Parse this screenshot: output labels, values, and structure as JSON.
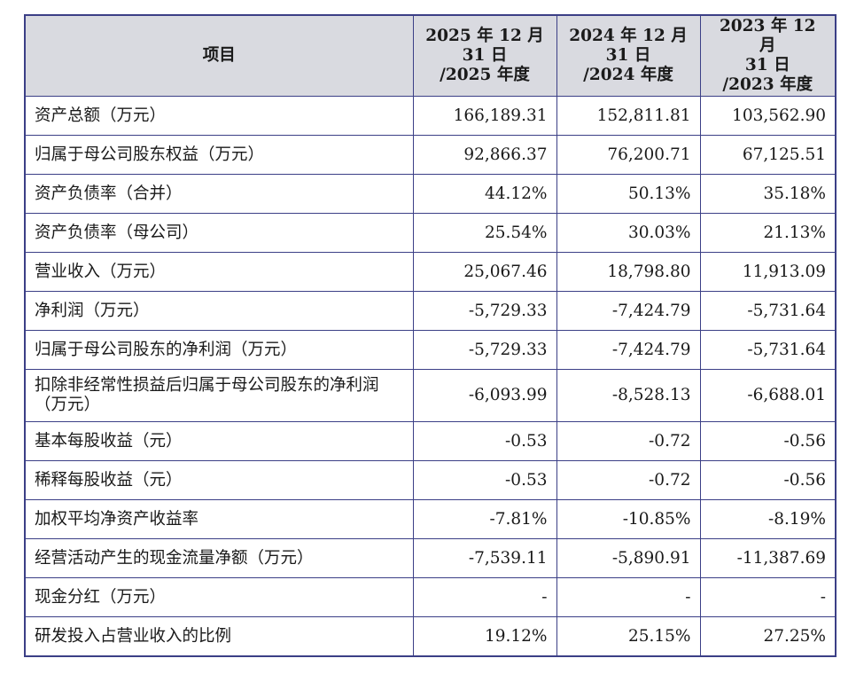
{
  "table": {
    "headers": {
      "item": "项目",
      "col1": [
        "2025 年 12 月",
        "31 日",
        "/2025 年度"
      ],
      "col2": [
        "2024 年 12 月",
        "31 日",
        "/2024 年度"
      ],
      "col3": [
        "2023 年 12 月",
        "31 日",
        "/2023 年度"
      ]
    },
    "rows": [
      {
        "label": "资产总额（万元）",
        "v2025": "166,189.31",
        "v2024": "152,811.81",
        "v2023": "103,562.90"
      },
      {
        "label": "归属于母公司股东权益（万元）",
        "v2025": "92,866.37",
        "v2024": "76,200.71",
        "v2023": "67,125.51"
      },
      {
        "label": "资产负债率（合并）",
        "v2025": "44.12%",
        "v2024": "50.13%",
        "v2023": "35.18%"
      },
      {
        "label": "资产负债率（母公司）",
        "v2025": "25.54%",
        "v2024": "30.03%",
        "v2023": "21.13%"
      },
      {
        "label": "营业收入（万元）",
        "v2025": "25,067.46",
        "v2024": "18,798.80",
        "v2023": "11,913.09"
      },
      {
        "label": "净利润（万元）",
        "v2025": "-5,729.33",
        "v2024": "-7,424.79",
        "v2023": "-5,731.64"
      },
      {
        "label": "归属于母公司股东的净利润（万元）",
        "v2025": "-5,729.33",
        "v2024": "-7,424.79",
        "v2023": "-5,731.64"
      },
      {
        "label": "扣除非经常性损益后归属于母公司股东的净利润（万元）",
        "v2025": "-6,093.99",
        "v2024": "-8,528.13",
        "v2023": "-6,688.01"
      },
      {
        "label": "基本每股收益（元）",
        "v2025": "-0.53",
        "v2024": "-0.72",
        "v2023": "-0.56"
      },
      {
        "label": "稀释每股收益（元）",
        "v2025": "-0.53",
        "v2024": "-0.72",
        "v2023": "-0.56"
      },
      {
        "label": "加权平均净资产收益率",
        "v2025": "-7.81%",
        "v2024": "-10.85%",
        "v2023": "-8.19%"
      },
      {
        "label": "经营活动产生的现金流量净额（万元）",
        "v2025": "-7,539.11",
        "v2024": "-5,890.91",
        "v2023": "-11,387.69"
      },
      {
        "label": "现金分红（万元）",
        "v2025": "-",
        "v2024": "-",
        "v2023": "-"
      },
      {
        "label": "研发投入占营业收入的比例",
        "v2025": "19.12%",
        "v2024": "25.15%",
        "v2023": "27.25%"
      }
    ]
  },
  "colors": {
    "border": "#3b3f86",
    "header_bg": "#d9dae0"
  }
}
